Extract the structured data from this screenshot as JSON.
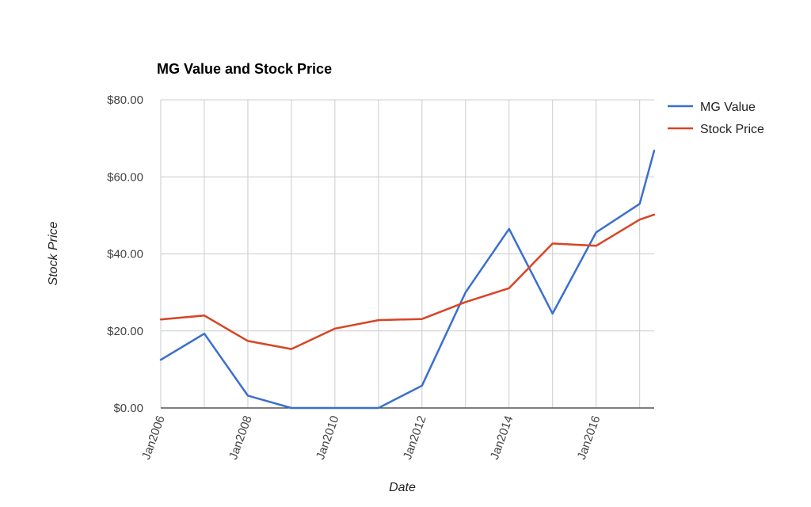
{
  "chart_data": {
    "type": "line",
    "title": "MG Value and Stock Price",
    "xlabel": "Date",
    "ylabel": "Stock Price",
    "x_ticks": [
      "Jan2006",
      "Jan2008",
      "Jan2010",
      "Jan2012",
      "Jan2014",
      "Jan2016"
    ],
    "y_ticks": [
      "$0.00",
      "$20.00",
      "$40.00",
      "$60.00",
      "$80.00"
    ],
    "ylim": [
      0,
      80
    ],
    "xlim": [
      "2006-01",
      "2017-05"
    ],
    "grid": true,
    "legend_position": "right",
    "series": [
      {
        "name": "MG Value",
        "color": "#3a6fcf",
        "points": [
          {
            "x": "2006-01",
            "y": 12.5
          },
          {
            "x": "2007-01",
            "y": 19.3
          },
          {
            "x": "2008-01",
            "y": 3.2
          },
          {
            "x": "2009-01",
            "y": 0
          },
          {
            "x": "2010-01",
            "y": 0
          },
          {
            "x": "2011-01",
            "y": 0
          },
          {
            "x": "2012-01",
            "y": 5.8
          },
          {
            "x": "2013-01",
            "y": 30.0
          },
          {
            "x": "2014-01",
            "y": 46.5
          },
          {
            "x": "2015-01",
            "y": 24.5
          },
          {
            "x": "2016-01",
            "y": 45.6
          },
          {
            "x": "2017-01",
            "y": 53.0
          },
          {
            "x": "2017-05",
            "y": 66.8
          }
        ]
      },
      {
        "name": "Stock Price",
        "color": "#d84425",
        "points": [
          {
            "x": "2006-01",
            "y": 23.0
          },
          {
            "x": "2007-01",
            "y": 24.0
          },
          {
            "x": "2008-01",
            "y": 17.4
          },
          {
            "x": "2009-01",
            "y": 15.3
          },
          {
            "x": "2010-01",
            "y": 20.6
          },
          {
            "x": "2011-01",
            "y": 22.8
          },
          {
            "x": "2012-01",
            "y": 23.1
          },
          {
            "x": "2013-01",
            "y": 27.5
          },
          {
            "x": "2014-01",
            "y": 31.1
          },
          {
            "x": "2015-01",
            "y": 42.7
          },
          {
            "x": "2016-01",
            "y": 42.1
          },
          {
            "x": "2017-01",
            "y": 48.9
          },
          {
            "x": "2017-05",
            "y": 50.2
          }
        ]
      }
    ]
  }
}
